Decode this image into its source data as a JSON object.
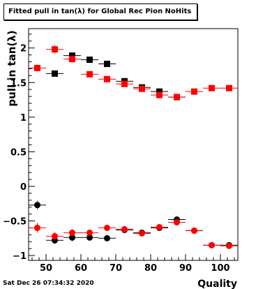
{
  "title": "Fitted pull in tan(λ) for Global Rec Pion NoHits",
  "timestamp": "Sat Dec 26 07:34:32 2020",
  "chart_data": {
    "type": "scatter",
    "title": "Fitted pull in tan(λ) for Global Rec Pion NoHits",
    "xlabel": "Quality",
    "ylabel": "pull in tan(λ)",
    "xlim": [
      45,
      105
    ],
    "ylim": [
      -1.07,
      2.28
    ],
    "xticks": [
      50,
      60,
      70,
      80,
      90,
      100
    ],
    "yticks": [
      -1,
      -0.5,
      0,
      0.5,
      1,
      1.5,
      2
    ],
    "yticklabels": [
      "−1",
      "−0.5",
      "0",
      "0.5",
      "1",
      "1.5",
      "2"
    ],
    "grid": false,
    "colors": {
      "black": "#000000",
      "red": "#ff0000"
    },
    "series": [
      {
        "marker": "square",
        "color": "black",
        "x": [
          52.5,
          57.5,
          62.5,
          67.5,
          72.5,
          77.5,
          82.5,
          87.5
        ],
        "y": [
          1.63,
          1.89,
          1.83,
          1.77,
          1.52,
          1.43,
          1.37,
          1.29
        ],
        "err": [
          0.04,
          0.04,
          0.04,
          0.04,
          0.03,
          0.03,
          0.03,
          0.03
        ]
      },
      {
        "marker": "square",
        "color": "red",
        "x": [
          47.5,
          52.5,
          57.5,
          62.5,
          67.5,
          72.5,
          77.5,
          82.5,
          87.5,
          92.5,
          97.5,
          102.5
        ],
        "y": [
          1.71,
          1.98,
          1.84,
          1.62,
          1.55,
          1.48,
          1.41,
          1.32,
          1.29,
          1.37,
          1.42,
          1.42
        ],
        "err": [
          0.05,
          0.06,
          0.05,
          0.03,
          0.03,
          0.03,
          0.03,
          0.03,
          0.03,
          0.02,
          0.02,
          0.02
        ]
      },
      {
        "marker": "circle",
        "color": "black",
        "x": [
          47.5,
          52.5,
          57.5,
          62.5,
          67.5,
          72.5,
          77.5,
          82.5,
          87.5,
          92.5,
          97.5,
          102.5
        ],
        "y": [
          -0.27,
          -0.78,
          -0.74,
          -0.74,
          -0.75,
          -0.63,
          -0.67,
          -0.6,
          -0.48,
          -0.64,
          -0.85,
          -0.85
        ],
        "err": [
          0.06,
          0.05,
          0.05,
          0.04,
          0.04,
          0.03,
          0.03,
          0.03,
          0.03,
          0.02,
          0.02,
          0.02
        ]
      },
      {
        "marker": "circle",
        "color": "red",
        "x": [
          47.5,
          52.5,
          57.5,
          62.5,
          67.5,
          72.5,
          77.5,
          82.5,
          87.5,
          92.5,
          97.5,
          102.5
        ],
        "y": [
          -0.6,
          -0.72,
          -0.67,
          -0.67,
          -0.6,
          -0.62,
          -0.68,
          -0.59,
          -0.52,
          -0.64,
          -0.85,
          -0.86
        ],
        "err": [
          0.07,
          0.06,
          0.05,
          0.04,
          0.03,
          0.03,
          0.03,
          0.03,
          0.03,
          0.02,
          0.02,
          0.02
        ]
      }
    ]
  }
}
